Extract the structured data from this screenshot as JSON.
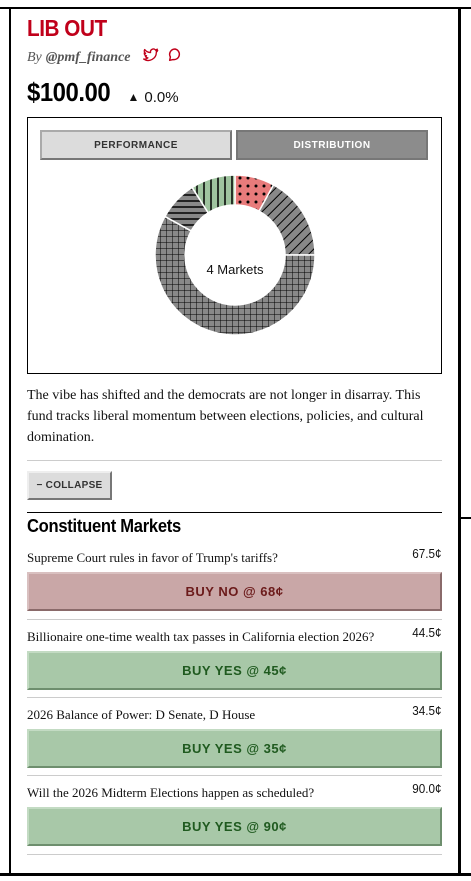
{
  "fund": {
    "title": "LIB OUT",
    "by_prefix": "By",
    "handle": "@pmf_finance",
    "price": "$100.00",
    "change": "0.0%"
  },
  "tabs": {
    "performance": "PERFORMANCE",
    "distribution": "DISTRIBUTION"
  },
  "chart_data": {
    "type": "pie",
    "center_label": "4 Markets",
    "slices": [
      {
        "pattern": "dots",
        "color": "#e87b7b",
        "value": 8
      },
      {
        "pattern": "diagonal",
        "color": "#888888",
        "value": 17
      },
      {
        "pattern": "grid",
        "color": "#888888",
        "value": 58
      },
      {
        "pattern": "horizontal",
        "color": "#888888",
        "value": 8
      },
      {
        "pattern": "vertical",
        "color": "#9fc49f",
        "value": 9
      }
    ]
  },
  "description": "The vibe has shifted and the democrats are not longer in disarray. This fund tracks liberal momentum between elections, policies, and cultural domination.",
  "collapse_label": "− COLLAPSE",
  "section_title": "Constituent Markets",
  "markets": [
    {
      "question": "Supreme Court rules in favor of Trump's tariffs?",
      "price": "67.5¢",
      "button": "BUY NO @ 68¢",
      "side": "no"
    },
    {
      "question": "Billionaire one-time wealth tax passes in California election 2026?",
      "price": "44.5¢",
      "button": "BUY YES @ 45¢",
      "side": "yes"
    },
    {
      "question": "2026 Balance of Power: D Senate, D House",
      "price": "34.5¢",
      "button": "BUY YES @ 35¢",
      "side": "yes"
    },
    {
      "question": "Will the 2026 Midterm Elections happen as scheduled?",
      "price": "90.0¢",
      "button": "BUY YES @ 90¢",
      "side": "yes"
    }
  ]
}
